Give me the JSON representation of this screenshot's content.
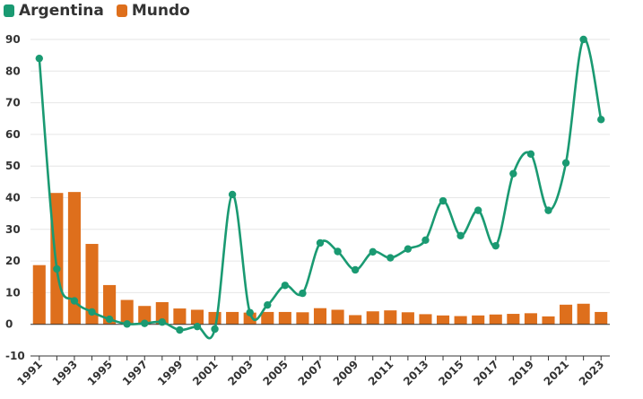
{
  "chart_data": {
    "type": "bar+line",
    "title": "",
    "xlabel": "",
    "ylabel": "",
    "ylim": [
      -10,
      90
    ],
    "yticks": [
      -10,
      0,
      10,
      20,
      30,
      40,
      50,
      60,
      70,
      80,
      90
    ],
    "grid": "horizontal",
    "legend_position": "top-left",
    "x": [
      1991,
      1992,
      1993,
      1994,
      1995,
      1996,
      1997,
      1998,
      1999,
      2000,
      2001,
      2002,
      2003,
      2004,
      2005,
      2006,
      2007,
      2008,
      2009,
      2010,
      2011,
      2012,
      2013,
      2014,
      2015,
      2016,
      2017,
      2018,
      2019,
      2020,
      2021,
      2022,
      2023
    ],
    "x_tick_labels": [
      "1991",
      "1993",
      "1995",
      "1997",
      "1999",
      "2001",
      "2003",
      "2005",
      "2007",
      "2009",
      "2011",
      "2013",
      "2015",
      "2017",
      "2019",
      "2021",
      "2023"
    ],
    "series": [
      {
        "name": "Argentina",
        "type": "line",
        "color": "#1a9a72",
        "values": [
          84,
          17.5,
          7.4,
          3.9,
          1.6,
          0.1,
          0.3,
          0.7,
          -1.8,
          -0.7,
          -1.5,
          41,
          3.7,
          6.1,
          12.3,
          9.8,
          25.7,
          23,
          17.2,
          22.9,
          21,
          23.8,
          26.6,
          39,
          28,
          36,
          24.8,
          47.6,
          53.8,
          36,
          51,
          90,
          64.7
        ]
      },
      {
        "name": "Mundo",
        "type": "bar",
        "color": "#de6f1c",
        "values": [
          18.7,
          41.5,
          41.8,
          25.4,
          12.4,
          7.7,
          5.8,
          7,
          5,
          4.6,
          3.9,
          3.9,
          3.7,
          3.9,
          3.9,
          3.8,
          5.1,
          4.6,
          2.9,
          4.1,
          4.4,
          3.8,
          3.2,
          2.8,
          2.6,
          2.8,
          3.1,
          3.3,
          3.5,
          2.5,
          6.2,
          6.5,
          3.9
        ]
      }
    ]
  }
}
